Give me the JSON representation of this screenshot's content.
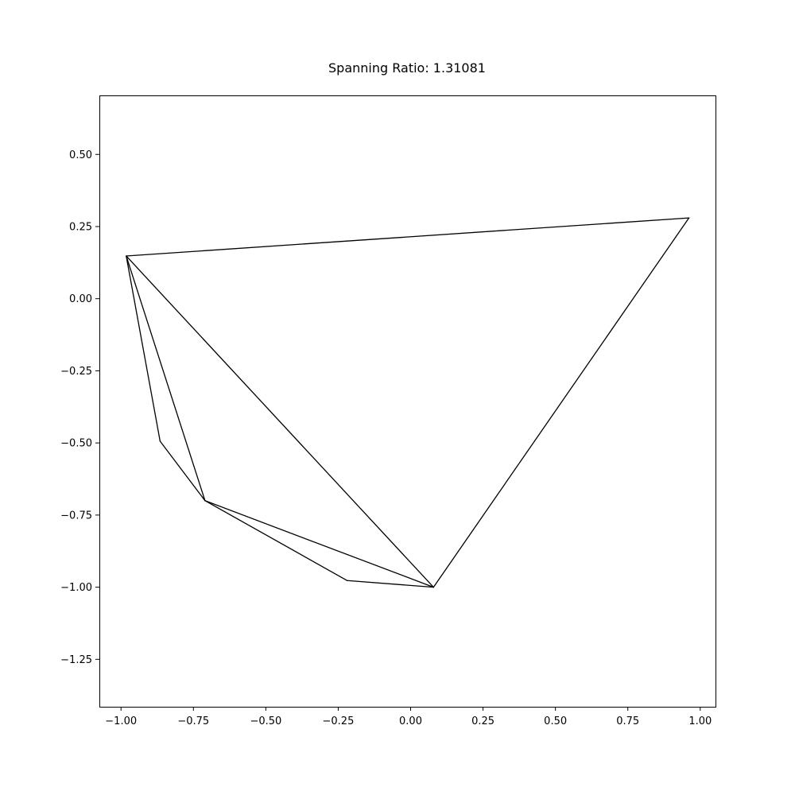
{
  "chart_data": {
    "type": "line",
    "title": "Spanning Ratio: 1.31081",
    "xlabel": "",
    "ylabel": "",
    "xlim": [
      -1.0747,
      1.0527
    ],
    "ylim": [
      -1.4144,
      0.7046
    ],
    "x_ticks": [
      -1.0,
      -0.75,
      -0.5,
      -0.25,
      0.0,
      0.25,
      0.5,
      0.75,
      1.0
    ],
    "x_tick_labels": [
      "−1.00",
      "−0.75",
      "−0.50",
      "−0.25",
      "0.00",
      "0.25",
      "0.50",
      "0.75",
      "1.00"
    ],
    "y_ticks": [
      0.5,
      0.25,
      0.0,
      -0.25,
      -0.5,
      -0.75,
      -1.0,
      -1.25
    ],
    "y_tick_labels": [
      "0.50",
      "0.25",
      "0.00",
      "−0.25",
      "−0.50",
      "−0.75",
      "−1.00",
      "−1.25"
    ],
    "grid": false,
    "line_color": "#000000",
    "points": [
      {
        "x": -0.982,
        "y": 0.148
      },
      {
        "x": 0.961,
        "y": 0.28
      },
      {
        "x": 0.079,
        "y": -1.0
      },
      {
        "x": -0.71,
        "y": -0.7
      },
      {
        "x": -0.865,
        "y": -0.494
      },
      {
        "x": -0.219,
        "y": -0.977
      }
    ],
    "edges": [
      [
        0,
        1
      ],
      [
        1,
        2
      ],
      [
        0,
        2
      ],
      [
        0,
        3
      ],
      [
        0,
        4
      ],
      [
        4,
        3
      ],
      [
        3,
        2
      ],
      [
        3,
        5
      ],
      [
        5,
        2
      ]
    ]
  }
}
